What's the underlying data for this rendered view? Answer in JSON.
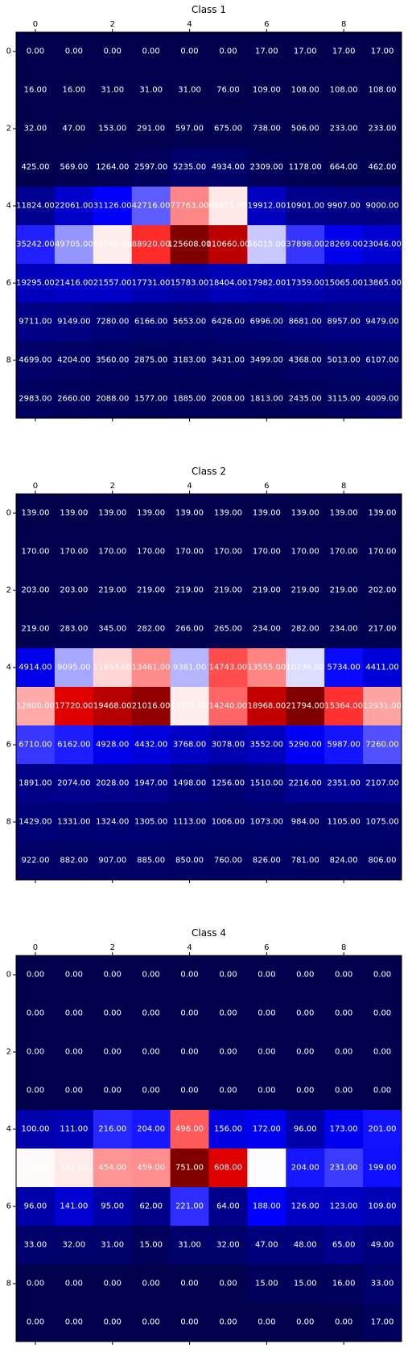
{
  "chart_data": [
    {
      "type": "heatmap",
      "title": "Class 1",
      "colormap": "seismic",
      "x_ticks": [
        "0",
        "2",
        "4",
        "6",
        "8"
      ],
      "y_ticks": [
        "0",
        "2",
        "4",
        "6",
        "8"
      ],
      "values": [
        [
          0,
          0,
          0,
          0,
          0,
          0,
          17,
          17,
          17,
          17
        ],
        [
          16,
          16,
          31,
          31,
          31,
          76,
          109,
          108,
          108,
          108
        ],
        [
          32,
          47,
          153,
          291,
          597,
          675,
          738,
          506,
          233,
          233
        ],
        [
          425,
          569,
          1264,
          2597,
          5235,
          4934,
          2309,
          1178,
          664,
          462
        ],
        [
          11824,
          22061,
          31126,
          42716,
          77763,
          65615,
          19912,
          10901,
          9907,
          9000
        ],
        [
          35242,
          49705,
          65064,
          88920,
          125608,
          110660,
          56015,
          37898,
          28269,
          23046
        ],
        [
          19295,
          21416,
          21557,
          17731,
          15783,
          18404,
          17982,
          17359,
          15065,
          13865
        ],
        [
          9711,
          9149,
          7280,
          6166,
          5653,
          6426,
          6996,
          8681,
          8957,
          9479
        ],
        [
          4699,
          4204,
          3560,
          2875,
          3183,
          3431,
          3499,
          4368,
          5013,
          6107
        ],
        [
          2983,
          2660,
          2088,
          1577,
          1885,
          2008,
          1813,
          2435,
          3115,
          4009
        ]
      ]
    },
    {
      "type": "heatmap",
      "title": "Class 2",
      "colormap": "seismic",
      "x_ticks": [
        "0",
        "2",
        "4",
        "6",
        "8"
      ],
      "y_ticks": [
        "0",
        "2",
        "4",
        "6",
        "8"
      ],
      "values": [
        [
          139,
          139,
          139,
          139,
          139,
          139,
          139,
          139,
          139,
          139
        ],
        [
          170,
          170,
          170,
          170,
          170,
          170,
          170,
          170,
          170,
          170
        ],
        [
          203,
          203,
          219,
          219,
          219,
          219,
          219,
          219,
          219,
          202
        ],
        [
          219,
          283,
          345,
          282,
          266,
          265,
          234,
          282,
          234,
          217
        ],
        [
          4914,
          9095,
          11853,
          13461,
          9381,
          14743,
          13555,
          10236,
          5734,
          4411
        ],
        [
          12800,
          17720,
          19468,
          21016,
          11375,
          14240,
          18968,
          21794,
          15364,
          12931
        ],
        [
          6710,
          6162,
          4928,
          4432,
          3768,
          3078,
          3552,
          5290,
          5987,
          7260
        ],
        [
          1891,
          2074,
          2028,
          1947,
          1498,
          1256,
          1510,
          2216,
          2351,
          2107
        ],
        [
          1429,
          1331,
          1324,
          1305,
          1113,
          1006,
          1073,
          984,
          1105,
          1075
        ],
        [
          922,
          882,
          907,
          885,
          850,
          760,
          826,
          781,
          824,
          806
        ]
      ]
    },
    {
      "type": "heatmap",
      "title": "Class 4",
      "colormap": "seismic",
      "x_ticks": [
        "0",
        "2",
        "4",
        "6",
        "8"
      ],
      "y_ticks": [
        "0",
        "2",
        "4",
        "6",
        "8"
      ],
      "values": [
        [
          0,
          0,
          0,
          0,
          0,
          0,
          0,
          0,
          0,
          0
        ],
        [
          0,
          0,
          0,
          0,
          0,
          0,
          0,
          0,
          0,
          0
        ],
        [
          0,
          0,
          0,
          0,
          0,
          0,
          0,
          0,
          0,
          0
        ],
        [
          0,
          0,
          0,
          0,
          0,
          0,
          0,
          0,
          0,
          0
        ],
        [
          100,
          111,
          216,
          204,
          496,
          156,
          172,
          96,
          173,
          201
        ],
        [
          379,
          392,
          454,
          459,
          751,
          608,
          373,
          204,
          231,
          199
        ],
        [
          96,
          141,
          95,
          62,
          221,
          64,
          188,
          126,
          123,
          109
        ],
        [
          33,
          32,
          31,
          15,
          31,
          32,
          47,
          48,
          65,
          49
        ],
        [
          0,
          0,
          0,
          0,
          0,
          0,
          15,
          15,
          16,
          33
        ],
        [
          0,
          0,
          0,
          0,
          0,
          0,
          0,
          0,
          0,
          17
        ]
      ]
    }
  ]
}
